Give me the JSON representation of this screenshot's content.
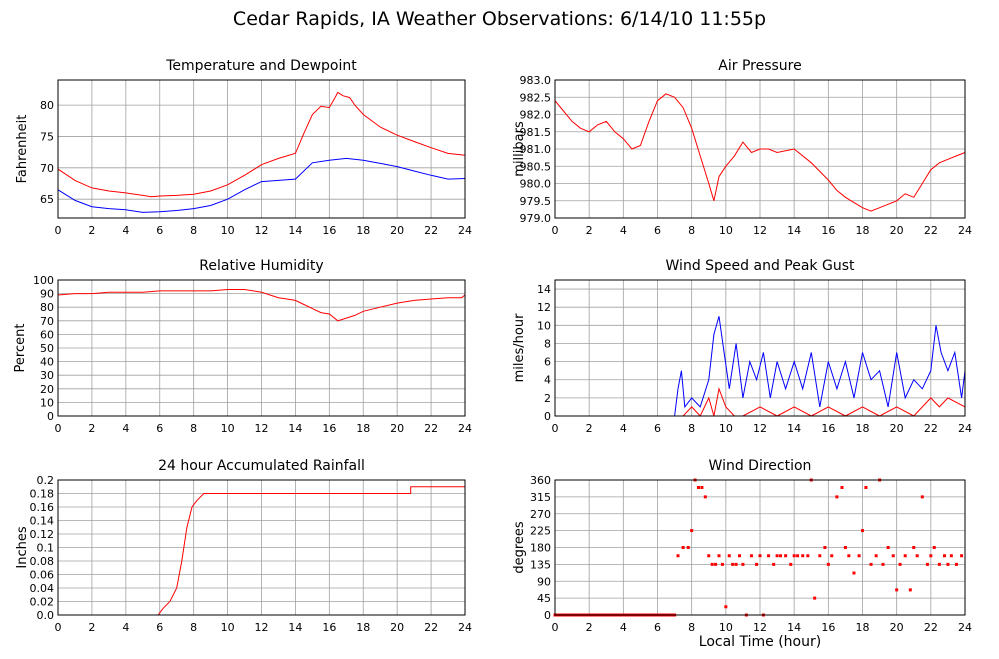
{
  "title": "Cedar Rapids, IA Weather Observations: 6/14/10 11:55p",
  "xlabel": "Local Time (hour)",
  "chart_data": [
    {
      "id": "temp",
      "type": "line",
      "title": "Temperature and Dewpoint",
      "xlabel": "",
      "ylabel": "Fahrenheit",
      "xlim": [
        0,
        24
      ],
      "ylim": [
        62,
        84
      ],
      "xticks": [
        0,
        2,
        4,
        6,
        8,
        10,
        12,
        14,
        16,
        18,
        20,
        22,
        24
      ],
      "xtick_labels": [
        "0",
        "2",
        "4",
        "6",
        "8",
        "10",
        "12",
        "14",
        "16",
        "18",
        "20",
        "22",
        "24"
      ],
      "yticks": [
        65,
        70,
        75,
        80
      ],
      "ytick_labels": [
        "65",
        "70",
        "75",
        "80"
      ],
      "grid": true,
      "series": [
        {
          "color": "#ff0000",
          "x": [
            0,
            1,
            2,
            3,
            4,
            5,
            5.5,
            6,
            7,
            8,
            9,
            10,
            11,
            12,
            13,
            14,
            14.5,
            15,
            15.5,
            16,
            16.3,
            16.5,
            16.8,
            17.2,
            17.5,
            18,
            19,
            20,
            21,
            22,
            23,
            24
          ],
          "y": [
            69.8,
            68,
            66.8,
            66.3,
            66,
            65.6,
            65.4,
            65.5,
            65.6,
            65.8,
            66.3,
            67.3,
            68.8,
            70.5,
            71.5,
            72.3,
            75.5,
            78.5,
            79.8,
            79.6,
            81,
            82,
            81.5,
            81.2,
            80,
            78.5,
            76.5,
            75.2,
            74.2,
            73.2,
            72.3,
            72
          ]
        },
        {
          "color": "#0000ff",
          "x": [
            0,
            1,
            2,
            3,
            4,
            5,
            6,
            7,
            8,
            9,
            10,
            11,
            12,
            13,
            14,
            15,
            16,
            17,
            18,
            19,
            20,
            21,
            22,
            23,
            24
          ],
          "y": [
            66.5,
            64.8,
            63.8,
            63.5,
            63.3,
            62.9,
            63,
            63.2,
            63.5,
            64,
            65,
            66.5,
            67.8,
            68,
            68.2,
            70.8,
            71.2,
            71.5,
            71.2,
            70.7,
            70.2,
            69.5,
            68.8,
            68.2,
            68.3
          ]
        }
      ]
    },
    {
      "id": "pressure",
      "type": "line",
      "title": "Air Pressure",
      "xlabel": "",
      "ylabel": "millibars",
      "xlim": [
        0,
        24
      ],
      "ylim": [
        979.0,
        983.0
      ],
      "xticks": [
        0,
        2,
        4,
        6,
        8,
        10,
        12,
        14,
        16,
        18,
        20,
        22,
        24
      ],
      "xtick_labels": [
        "0",
        "2",
        "4",
        "6",
        "8",
        "10",
        "12",
        "14",
        "16",
        "18",
        "20",
        "22",
        "24"
      ],
      "yticks": [
        979.0,
        979.5,
        980.0,
        980.5,
        981.0,
        981.5,
        982.0,
        982.5,
        983.0
      ],
      "ytick_labels": [
        "979.0",
        "979.5",
        "980.0",
        "980.5",
        "981.0",
        "981.5",
        "982.0",
        "982.5",
        "983.0"
      ],
      "grid": true,
      "series": [
        {
          "color": "#ff0000",
          "x": [
            0,
            0.5,
            1,
            1.5,
            2,
            2.5,
            3,
            3.5,
            4,
            4.5,
            5,
            5.5,
            6,
            6.5,
            7,
            7.5,
            8,
            8.5,
            9,
            9.3,
            9.6,
            10,
            10.5,
            11,
            11.5,
            12,
            12.5,
            13,
            14,
            15,
            16,
            16.5,
            17,
            18,
            18.5,
            19,
            20,
            20.5,
            21,
            21.5,
            22,
            22.5,
            23,
            23.5,
            24
          ],
          "y": [
            982.4,
            982.1,
            981.8,
            981.6,
            981.5,
            981.7,
            981.8,
            981.5,
            981.3,
            981.0,
            981.1,
            981.8,
            982.4,
            982.6,
            982.5,
            982.2,
            981.6,
            980.8,
            980.0,
            979.5,
            980.2,
            980.5,
            980.8,
            981.2,
            980.9,
            981.0,
            981.0,
            980.9,
            981.0,
            980.6,
            980.1,
            979.8,
            979.6,
            979.3,
            979.2,
            979.3,
            979.5,
            979.7,
            979.6,
            980.0,
            980.4,
            980.6,
            980.7,
            980.8,
            980.9
          ]
        }
      ]
    },
    {
      "id": "humidity",
      "type": "line",
      "title": "Relative Humidity",
      "xlabel": "",
      "ylabel": "Percent",
      "xlim": [
        0,
        24
      ],
      "ylim": [
        0,
        100
      ],
      "xticks": [
        0,
        2,
        4,
        6,
        8,
        10,
        12,
        14,
        16,
        18,
        20,
        22,
        24
      ],
      "xtick_labels": [
        "0",
        "2",
        "4",
        "6",
        "8",
        "10",
        "12",
        "14",
        "16",
        "18",
        "20",
        "22",
        "24"
      ],
      "yticks": [
        0,
        10,
        20,
        30,
        40,
        50,
        60,
        70,
        80,
        90,
        100
      ],
      "ytick_labels": [
        "0",
        "10",
        "20",
        "30",
        "40",
        "50",
        "60",
        "70",
        "80",
        "90",
        "100"
      ],
      "grid": true,
      "series": [
        {
          "color": "#ff0000",
          "x": [
            0,
            1,
            2,
            3,
            4,
            5,
            6,
            7,
            8,
            9,
            10,
            11,
            12,
            12.5,
            13,
            13.5,
            14,
            14.5,
            15,
            15.5,
            16,
            16.5,
            17,
            17.5,
            18,
            19,
            20,
            21,
            22,
            23,
            23.8,
            24
          ],
          "y": [
            89,
            90,
            90,
            91,
            91,
            91,
            92,
            92,
            92,
            92,
            93,
            93,
            91,
            89,
            87,
            86,
            85,
            82,
            79,
            76,
            75,
            70,
            72,
            74,
            77,
            80,
            83,
            85,
            86,
            87,
            87,
            89
          ]
        }
      ]
    },
    {
      "id": "wind",
      "type": "line",
      "title": "Wind Speed and Peak Gust",
      "xlabel": "",
      "ylabel": "miles/hour",
      "xlim": [
        0,
        24
      ],
      "ylim": [
        0,
        15
      ],
      "xticks": [
        0,
        2,
        4,
        6,
        8,
        10,
        12,
        14,
        16,
        18,
        20,
        22,
        24
      ],
      "xtick_labels": [
        "0",
        "2",
        "4",
        "6",
        "8",
        "10",
        "12",
        "14",
        "16",
        "18",
        "20",
        "22",
        "24"
      ],
      "yticks": [
        0,
        2,
        4,
        6,
        8,
        10,
        12,
        14
      ],
      "ytick_labels": [
        "0",
        "2",
        "4",
        "6",
        "8",
        "10",
        "12",
        "14"
      ],
      "grid": true,
      "series": [
        {
          "color": "#0000ff",
          "x": [
            0,
            7,
            7.2,
            7.4,
            7.6,
            8,
            8.5,
            9,
            9.3,
            9.6,
            9.9,
            10.2,
            10.6,
            11,
            11.4,
            11.8,
            12.2,
            12.6,
            13,
            13.5,
            14,
            14.5,
            15,
            15.5,
            16,
            16.5,
            17,
            17.5,
            18,
            18.5,
            19,
            19.5,
            20,
            20.5,
            21,
            21.5,
            22,
            22.3,
            22.6,
            23,
            23.4,
            23.8,
            24
          ],
          "y": [
            0,
            0,
            3,
            5,
            1,
            2,
            1,
            4,
            9,
            11,
            7,
            3,
            8,
            2,
            6,
            4,
            7,
            2,
            6,
            3,
            6,
            3,
            7,
            1,
            6,
            3,
            6,
            2,
            7,
            4,
            5,
            1,
            7,
            2,
            4,
            3,
            5,
            10,
            7,
            5,
            7,
            2,
            5
          ]
        },
        {
          "color": "#ff0000",
          "x": [
            0,
            7,
            7.5,
            8,
            8.5,
            9,
            9.3,
            9.6,
            10,
            10.5,
            11,
            12,
            13,
            14,
            15,
            16,
            17,
            18,
            19,
            20,
            21,
            22,
            22.5,
            23,
            24
          ],
          "y": [
            0,
            0,
            0,
            1,
            0,
            2,
            0,
            3,
            1,
            0,
            0,
            1,
            0,
            1,
            0,
            1,
            0,
            1,
            0,
            1,
            0,
            2,
            1,
            2,
            1
          ]
        }
      ]
    },
    {
      "id": "rain",
      "type": "line",
      "title": "24 hour Accumulated Rainfall",
      "xlabel": "",
      "ylabel": "Inches",
      "xlim": [
        0,
        24
      ],
      "ylim": [
        0,
        0.2
      ],
      "xticks": [
        0,
        2,
        4,
        6,
        8,
        10,
        12,
        14,
        16,
        18,
        20,
        22,
        24
      ],
      "xtick_labels": [
        "0",
        "2",
        "4",
        "6",
        "8",
        "10",
        "12",
        "14",
        "16",
        "18",
        "20",
        "22",
        "24"
      ],
      "yticks": [
        0,
        0.02,
        0.04,
        0.06,
        0.08,
        0.1,
        0.12,
        0.14,
        0.16,
        0.18,
        0.2
      ],
      "ytick_labels": [
        "0.0",
        "0.02",
        "0.04",
        "0.06",
        "0.08",
        "0.1",
        "0.12",
        "0.14",
        "0.16",
        "0.18",
        "0.2"
      ],
      "grid": true,
      "series": [
        {
          "color": "#ff0000",
          "x": [
            0,
            5.9,
            6.2,
            6.6,
            7.0,
            7.3,
            7.6,
            7.9,
            8.2,
            8.6,
            9,
            20.8,
            20.8,
            24
          ],
          "y": [
            0,
            0,
            0.01,
            0.02,
            0.04,
            0.08,
            0.13,
            0.16,
            0.17,
            0.18,
            0.18,
            0.18,
            0.19,
            0.19
          ]
        }
      ]
    },
    {
      "id": "direction",
      "type": "scatter",
      "title": "Wind Direction",
      "xlabel": "Local Time (hour)",
      "ylabel": "degrees",
      "xlim": [
        0,
        24
      ],
      "ylim": [
        0,
        360
      ],
      "xticks": [
        0,
        2,
        4,
        6,
        8,
        10,
        12,
        14,
        16,
        18,
        20,
        22,
        24
      ],
      "xtick_labels": [
        "0",
        "2",
        "4",
        "6",
        "8",
        "10",
        "12",
        "14",
        "16",
        "18",
        "20",
        "22",
        "24"
      ],
      "yticks": [
        0,
        45,
        90,
        135,
        180,
        225,
        270,
        315,
        360
      ],
      "ytick_labels": [
        "0",
        "45",
        "90",
        "135",
        "180",
        "225",
        "270",
        "315",
        "360"
      ],
      "grid": true,
      "series": [
        {
          "color": "#ff0000",
          "x": [
            0,
            0.5,
            1,
            1.5,
            2,
            2.5,
            3,
            3.5,
            4,
            4.5,
            5,
            5.5,
            6,
            6.5,
            7,
            7.2,
            7.5,
            7.8,
            8,
            8.2,
            8.4,
            8.6,
            8.8,
            9,
            9.2,
            9.4,
            9.6,
            9.8,
            10,
            10.2,
            10.4,
            10.6,
            10.8,
            11,
            11.2,
            11.5,
            11.8,
            12,
            12.2,
            12.5,
            12.8,
            13,
            13.2,
            13.5,
            13.8,
            14,
            14.2,
            14.5,
            14.8,
            15,
            15.2,
            15.5,
            15.8,
            16,
            16.2,
            16.5,
            16.8,
            17,
            17.2,
            17.5,
            17.8,
            18,
            18.2,
            18.5,
            18.8,
            19,
            19.2,
            19.5,
            19.8,
            20,
            20.2,
            20.5,
            20.8,
            21,
            21.2,
            21.5,
            21.8,
            22,
            22.2,
            22.5,
            22.8,
            23,
            23.2,
            23.5,
            23.8
          ],
          "y": [
            0,
            0,
            0,
            0,
            0,
            0,
            0,
            0,
            0,
            0,
            0,
            0,
            0,
            0,
            0,
            158,
            180,
            180,
            225,
            360,
            340,
            340,
            315,
            158,
            135,
            135,
            158,
            135,
            22,
            158,
            135,
            135,
            158,
            135,
            0,
            158,
            135,
            158,
            0,
            158,
            135,
            158,
            158,
            158,
            135,
            158,
            158,
            158,
            158,
            360,
            45,
            158,
            180,
            135,
            158,
            315,
            340,
            180,
            158,
            112,
            158,
            225,
            340,
            135,
            158,
            360,
            135,
            180,
            158,
            67,
            135,
            158,
            67,
            180,
            158,
            315,
            135,
            158,
            180,
            135,
            158,
            135,
            158,
            135,
            158
          ]
        }
      ]
    }
  ]
}
